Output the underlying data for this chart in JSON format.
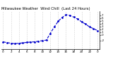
{
  "title": "Milwaukee Weather  Wind Chill  (Last 24 Hours)",
  "x_values": [
    0,
    1,
    2,
    3,
    4,
    5,
    6,
    7,
    8,
    9,
    10,
    11,
    12,
    13,
    14,
    15,
    16,
    17,
    18,
    19,
    20,
    21,
    22,
    23,
    24
  ],
  "y_values": [
    -2.5,
    -2.8,
    -3.0,
    -3.2,
    -3.0,
    -2.9,
    -2.7,
    -2.6,
    -2.5,
    -2.3,
    -2.1,
    -1.9,
    0.5,
    2.8,
    4.8,
    6.2,
    7.2,
    6.9,
    6.3,
    5.6,
    4.6,
    3.8,
    2.8,
    2.2,
    1.5
  ],
  "line_color": "#0000cc",
  "line_style": "--",
  "marker": ".",
  "marker_color": "#0000cc",
  "marker_size": 2.0,
  "line_width": 0.8,
  "background_color": "#ffffff",
  "grid_color": "#aaaaaa",
  "grid_style": ":",
  "ylim": [
    -5.0,
    8.5
  ],
  "xlim": [
    -0.5,
    24.5
  ],
  "ytick_values": [
    7,
    6,
    5,
    4,
    3,
    2,
    1,
    0,
    -2
  ],
  "ytick_labels": [
    "7",
    "6",
    "5",
    "4",
    "3",
    "2",
    "1",
    "0",
    "-2"
  ],
  "xtick_positions": [
    0,
    2,
    4,
    6,
    8,
    10,
    12,
    14,
    16,
    18,
    20,
    22,
    24
  ],
  "xtick_labels": [
    "0",
    "2",
    "4",
    "6",
    "8",
    "10",
    "12",
    "14",
    "16",
    "18",
    "20",
    "22",
    "0"
  ],
  "title_fontsize": 3.8,
  "tick_fontsize": 3.0
}
